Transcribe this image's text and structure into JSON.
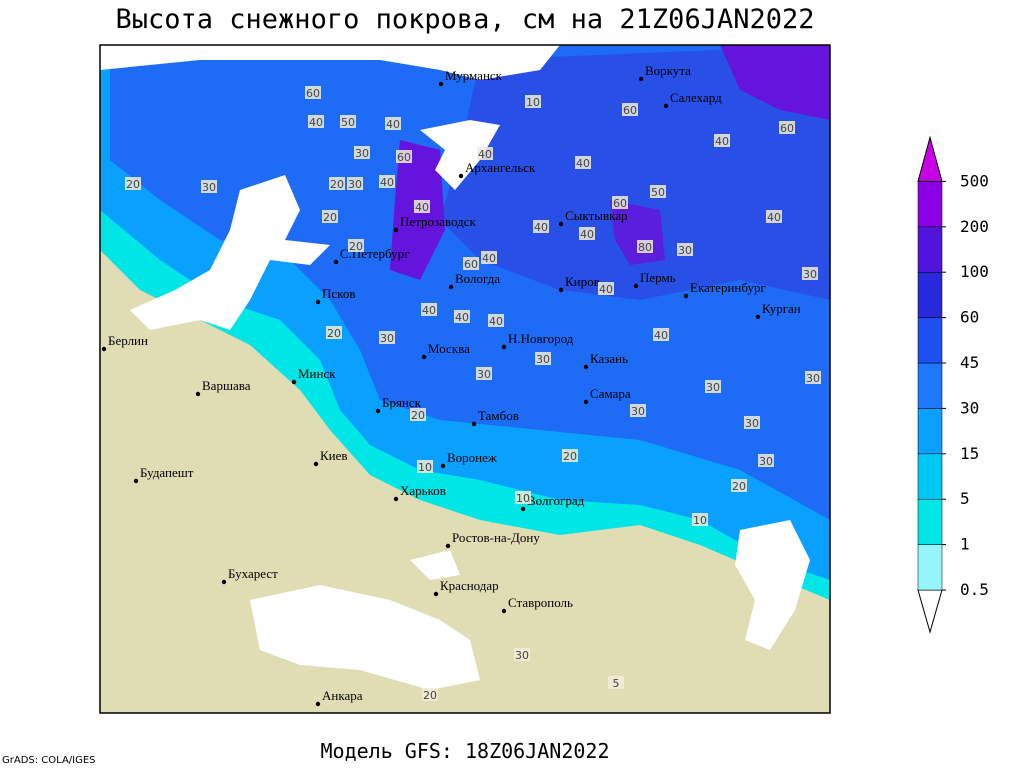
{
  "title": "Высота снежного покрова, см на 21Z06JAN2022",
  "footer": "Модель GFS: 18Z06JAN2022",
  "credit": "GrADS: COLA/IGES",
  "legend": {
    "levels": [
      0.5,
      1,
      5,
      15,
      30,
      45,
      60,
      100,
      200,
      500
    ],
    "colors": [
      "#ffffff",
      "#96f5fa",
      "#00e6e6",
      "#00c8f5",
      "#0aa0ff",
      "#1e78ff",
      "#1e50f0",
      "#2828dc",
      "#5014dc",
      "#8c00e6",
      "#c800e6"
    ]
  },
  "cities": [
    "Мурманск",
    "Воркута",
    "Салехард",
    "Архангельск",
    "Петрозаводск",
    "Сыктывкар",
    "С.Петербург",
    "Вологда",
    "Киров",
    "Пермь",
    "Екатеринбург",
    "Курган",
    "Псков",
    "Берлин",
    "Н.Новгород",
    "Москва",
    "Казань",
    "Минск",
    "Варшава",
    "Самара",
    "Брянск",
    "Тамбов",
    "Воронеж",
    "Киев",
    "Будапешт",
    "Харьков",
    "Волгоград",
    "Ростов-на-Дону",
    "Бухарест",
    "Краснодар",
    "Ставрополь",
    "Анкара"
  ],
  "contour_labels": [
    60,
    40,
    50,
    40,
    60,
    30,
    20,
    30,
    40,
    30,
    20,
    40,
    10,
    60,
    60,
    40,
    40,
    50,
    40,
    60,
    80,
    30,
    40,
    40,
    60,
    40,
    40,
    20,
    20,
    30,
    40,
    40,
    40,
    40,
    40,
    20,
    30,
    30,
    30,
    30,
    30,
    30,
    30,
    30,
    20,
    20,
    20,
    10,
    10,
    10,
    30,
    20,
    5
  ]
}
